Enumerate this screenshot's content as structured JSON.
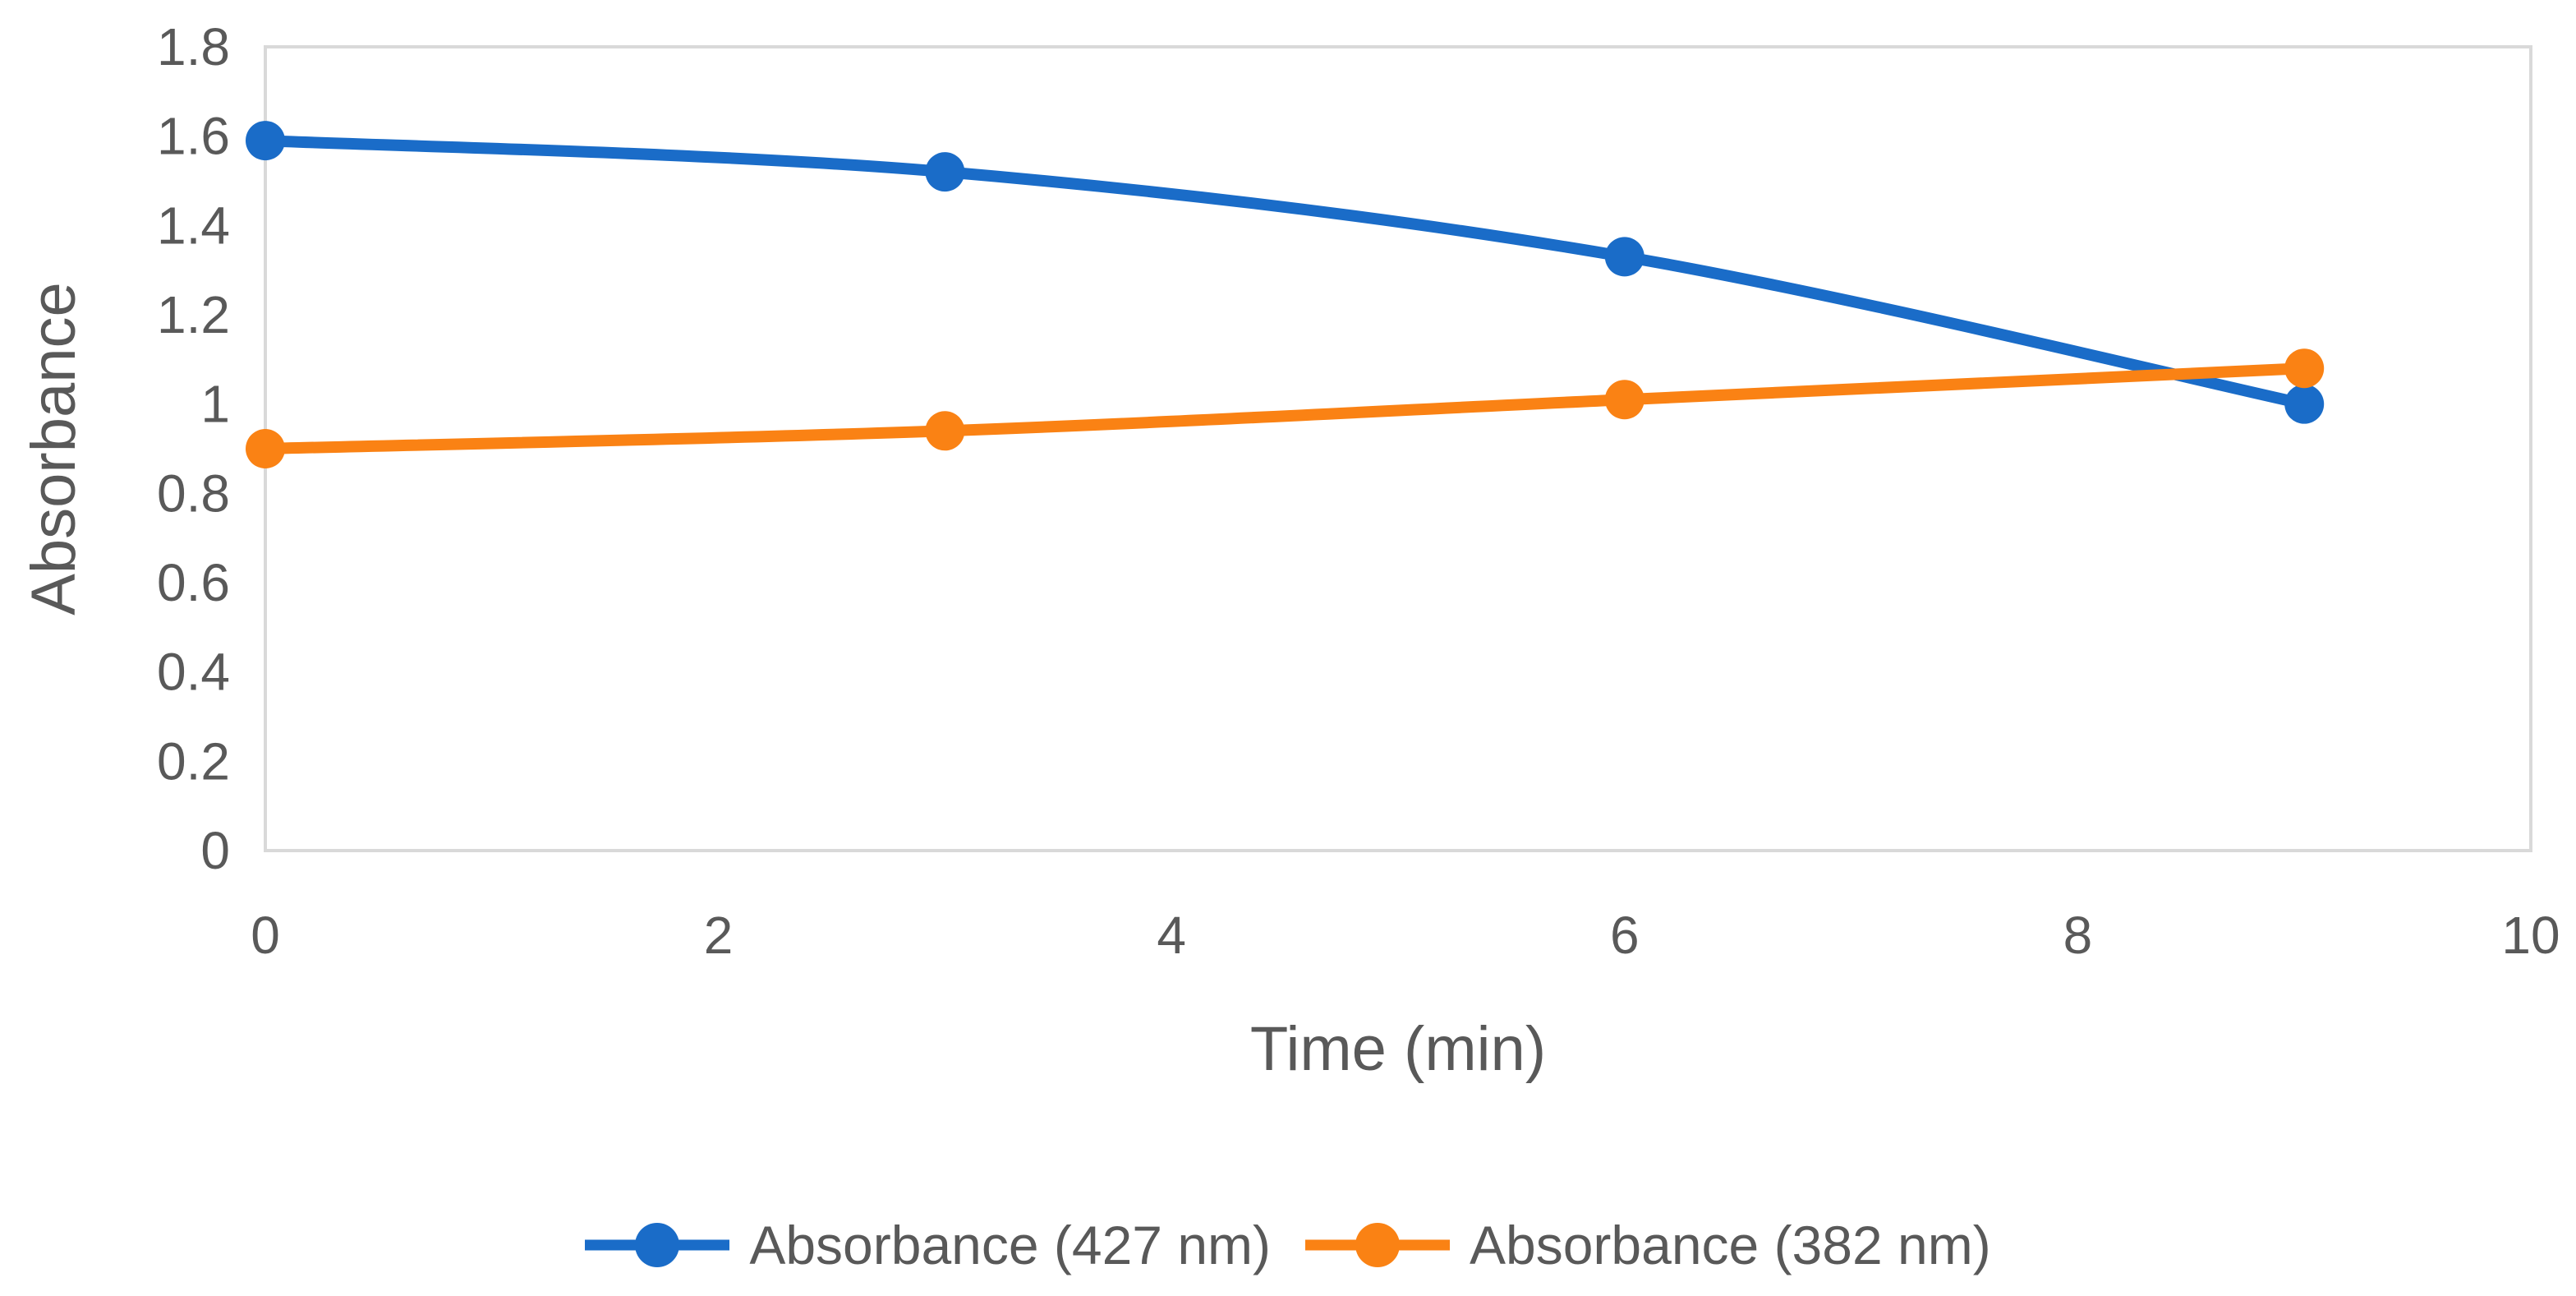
{
  "chart_data": {
    "type": "line",
    "title": "",
    "xlabel": "Time (min)",
    "ylabel": "Absorbance",
    "x": [
      0,
      3,
      6,
      9
    ],
    "series": [
      {
        "name": "Absorbance (427 nm)",
        "color": "#1a6cc8",
        "values": [
          1.59,
          1.52,
          1.33,
          1.0
        ]
      },
      {
        "name": "Absorbance (382 nm)",
        "color": "#fa8214",
        "values": [
          0.9,
          0.94,
          1.01,
          1.08
        ]
      }
    ],
    "xlim": [
      0,
      10
    ],
    "ylim": [
      0,
      1.8
    ],
    "x_ticks": [
      "0",
      "2",
      "4",
      "6",
      "8",
      "10"
    ],
    "y_ticks": [
      "0",
      "0.2",
      "0.4",
      "0.6",
      "0.8",
      "1",
      "1.2",
      "1.4",
      "1.6",
      "1.8"
    ],
    "grid": false,
    "smooth_lines": true,
    "legend_position": "bottom",
    "plot_border_color": "#d9d9d9",
    "tick_label_color": "#595959",
    "background_color": "#ffffff"
  }
}
